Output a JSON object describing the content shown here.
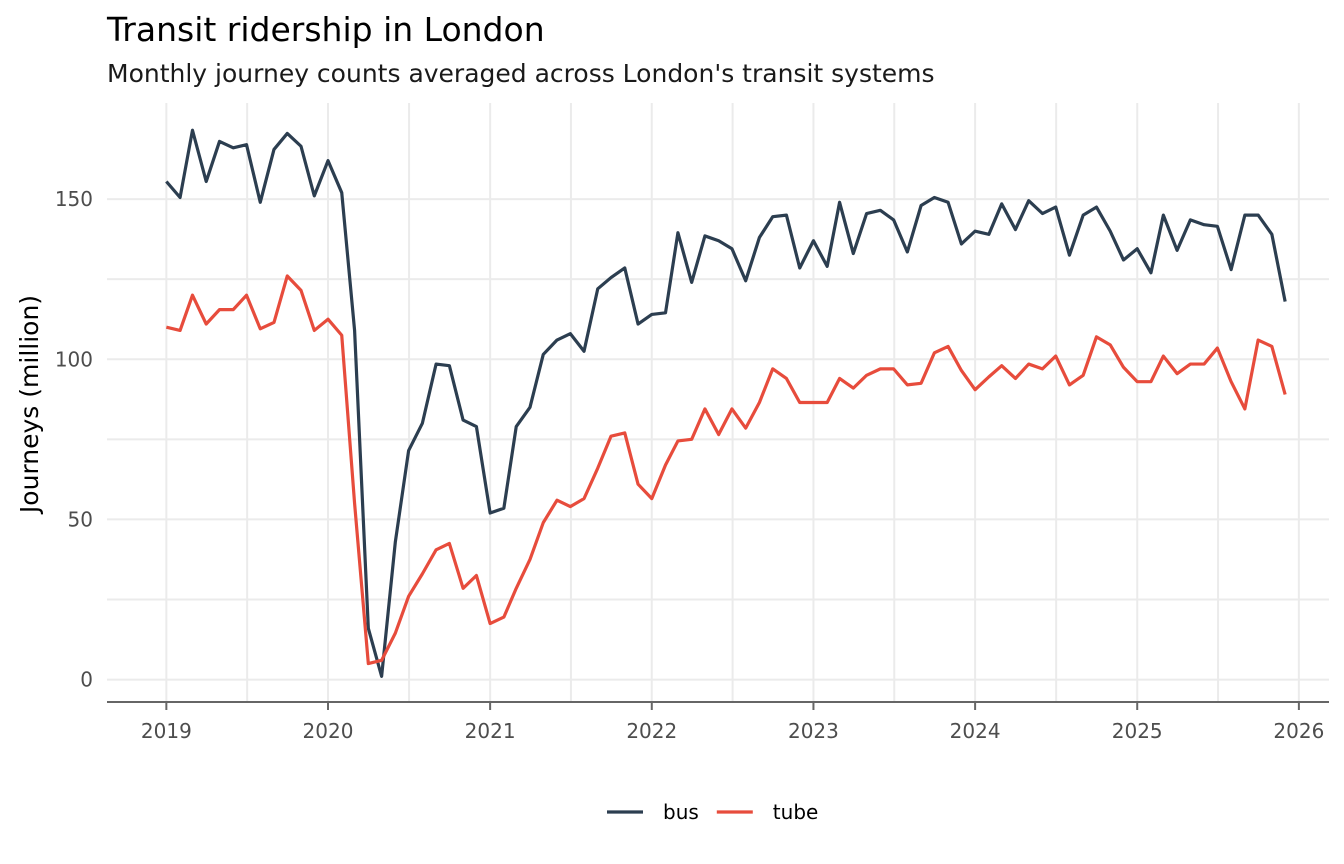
{
  "chart_data": {
    "type": "line",
    "title": "Transit ridership in London",
    "subtitle": "Monthly journey counts averaged across London's transit systems",
    "xlabel": "",
    "ylabel": "Journeys (million)",
    "x_ticks": [
      "2019",
      "2020",
      "2021",
      "2022",
      "2023",
      "2024",
      "2025",
      "2026"
    ],
    "y_ticks": [
      0,
      50,
      100,
      150
    ],
    "xlim": [
      "2018-08-20",
      "2026-03-10"
    ],
    "ylim": [
      -7,
      180
    ],
    "grid": true,
    "legend_position": "bottom",
    "x": [
      "2019-01",
      "2019-02",
      "2019-03",
      "2019-04",
      "2019-05",
      "2019-06",
      "2019-07",
      "2019-08",
      "2019-09",
      "2019-10",
      "2019-11",
      "2019-12",
      "2020-01",
      "2020-02",
      "2020-03",
      "2020-04",
      "2020-05",
      "2020-06",
      "2020-07",
      "2020-08",
      "2020-09",
      "2020-10",
      "2020-11",
      "2020-12",
      "2021-01",
      "2021-02",
      "2021-03",
      "2021-04",
      "2021-05",
      "2021-06",
      "2021-07",
      "2021-08",
      "2021-09",
      "2021-10",
      "2021-11",
      "2021-12",
      "2022-01",
      "2022-02",
      "2022-03",
      "2022-04",
      "2022-05",
      "2022-06",
      "2022-07",
      "2022-08",
      "2022-09",
      "2022-10",
      "2022-11",
      "2022-12",
      "2023-01",
      "2023-02",
      "2023-03",
      "2023-04",
      "2023-05",
      "2023-06",
      "2023-07",
      "2023-08",
      "2023-09",
      "2023-10",
      "2023-11",
      "2023-12",
      "2024-01",
      "2024-02",
      "2024-03",
      "2024-04",
      "2024-05",
      "2024-06",
      "2024-07",
      "2024-08",
      "2024-09",
      "2024-10",
      "2024-11",
      "2024-12",
      "2025-01",
      "2025-02",
      "2025-03",
      "2025-04",
      "2025-05",
      "2025-06",
      "2025-07",
      "2025-08",
      "2025-09",
      "2025-10",
      "2025-11",
      "2025-12"
    ],
    "series": [
      {
        "name": "bus",
        "color": "#2c3e50",
        "values": [
          155.5,
          150.5,
          171.5,
          155.5,
          168,
          166,
          167,
          149,
          165.5,
          170.5,
          166.5,
          151,
          162,
          152,
          109,
          16,
          1,
          43,
          71.5,
          80,
          98.5,
          98,
          81,
          79,
          52,
          53.5,
          79,
          85,
          101.5,
          106,
          108,
          102.5,
          122,
          125.5,
          128.5,
          111,
          114,
          114.5,
          139.5,
          124,
          138.5,
          137,
          134.5,
          124.5,
          138,
          144.5,
          145,
          128.5,
          137,
          129,
          149,
          133,
          145.5,
          146.5,
          143.5,
          133.5,
          148,
          150.5,
          149,
          136,
          140,
          139,
          148.5,
          140.5,
          149.5,
          145.5,
          147.5,
          132.5,
          145,
          147.5,
          140,
          131,
          134.5,
          127,
          145,
          134,
          143.5,
          142,
          141.5,
          128,
          145,
          145,
          139,
          118
        ]
      },
      {
        "name": "tube",
        "color": "#e74c3c",
        "values": [
          110,
          109,
          120,
          111,
          115.5,
          115.5,
          120,
          109.5,
          111.5,
          126,
          121.5,
          109,
          112.5,
          107.5,
          55,
          5,
          6,
          14.5,
          26,
          33,
          40.5,
          42.5,
          28.5,
          32.5,
          17.5,
          19.5,
          28.5,
          37.5,
          49,
          56,
          54,
          56.5,
          66,
          76,
          77,
          61,
          56.5,
          67,
          74.5,
          75,
          84.5,
          76.5,
          84.5,
          78.5,
          86.5,
          97,
          94,
          86.5,
          86.5,
          86.5,
          94,
          91,
          95,
          97,
          97,
          92,
          92.5,
          102,
          104,
          96.5,
          90.5,
          94.5,
          98,
          94,
          98.5,
          97,
          101,
          92,
          95,
          107,
          104.5,
          97.5,
          93,
          93,
          101,
          95.5,
          98.5,
          98.5,
          103.5,
          93,
          84.5,
          106,
          104,
          89
        ]
      }
    ]
  }
}
